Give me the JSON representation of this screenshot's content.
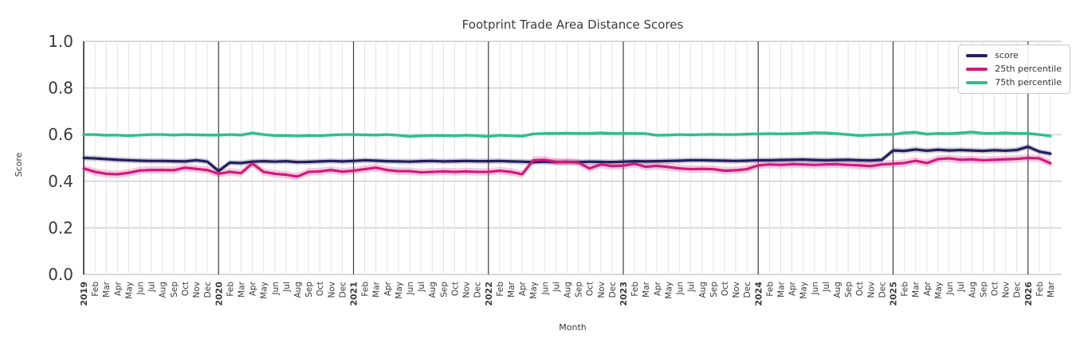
{
  "chart_data": {
    "type": "line",
    "title": "Footprint Trade Area Distance Scores",
    "xlabel": "Month",
    "ylabel": "Score",
    "ylim": [
      0.0,
      1.0
    ],
    "yticks": [
      0.0,
      0.2,
      0.4,
      0.6,
      0.8,
      1.0
    ],
    "grid": "on",
    "legend_position": "upper right",
    "x_labels": [
      "2019",
      "Feb",
      "Mar",
      "Apr",
      "May",
      "Jun",
      "Jul",
      "Aug",
      "Sep",
      "Oct",
      "Nov",
      "Dec",
      "2020",
      "Feb",
      "Mar",
      "Apr",
      "May",
      "Jun",
      "Jul",
      "Aug",
      "Sep",
      "Oct",
      "Nov",
      "Dec",
      "2021",
      "Feb",
      "Mar",
      "Apr",
      "May",
      "Jun",
      "Jul",
      "Aug",
      "Sep",
      "Oct",
      "Nov",
      "Dec",
      "2022",
      "Feb",
      "Mar",
      "Apr",
      "May",
      "Jun",
      "Jul",
      "Aug",
      "Sep",
      "Oct",
      "Nov",
      "Dec",
      "2023",
      "Feb",
      "Mar",
      "Apr",
      "May",
      "Jun",
      "Jul",
      "Aug",
      "Sep",
      "Oct",
      "Nov",
      "Dec",
      "2024",
      "Feb",
      "Mar",
      "Apr",
      "May",
      "Jun",
      "Jul",
      "Aug",
      "Sep",
      "Oct",
      "Nov",
      "Dec",
      "2025",
      "Feb",
      "Mar",
      "Apr",
      "May",
      "Jun",
      "Jul",
      "Aug",
      "Sep",
      "Oct",
      "Nov",
      "Dec",
      "2026",
      "Feb",
      "Mar"
    ],
    "series": [
      {
        "name": "score",
        "color": "#221f5b",
        "band_halfwidth": 0.012,
        "values": [
          0.5,
          0.498,
          0.495,
          0.492,
          0.49,
          0.488,
          0.487,
          0.487,
          0.486,
          0.485,
          0.49,
          0.484,
          0.444,
          0.48,
          0.478,
          0.484,
          0.486,
          0.484,
          0.486,
          0.482,
          0.483,
          0.485,
          0.487,
          0.485,
          0.487,
          0.49,
          0.488,
          0.486,
          0.485,
          0.484,
          0.486,
          0.487,
          0.485,
          0.486,
          0.487,
          0.486,
          0.486,
          0.487,
          0.485,
          0.484,
          0.482,
          0.484,
          0.482,
          0.483,
          0.482,
          0.484,
          0.483,
          0.482,
          0.484,
          0.486,
          0.485,
          0.486,
          0.487,
          0.488,
          0.49,
          0.49,
          0.489,
          0.488,
          0.487,
          0.488,
          0.49,
          0.49,
          0.491,
          0.492,
          0.493,
          0.491,
          0.49,
          0.491,
          0.492,
          0.49,
          0.489,
          0.492,
          0.532,
          0.53,
          0.536,
          0.531,
          0.535,
          0.532,
          0.534,
          0.532,
          0.53,
          0.533,
          0.531,
          0.534,
          0.548,
          0.527,
          0.518
        ]
      },
      {
        "name": "25th percentile",
        "color": "#d2197d",
        "band_halfwidth": 0.016,
        "values": [
          0.455,
          0.44,
          0.432,
          0.43,
          0.436,
          0.446,
          0.448,
          0.448,
          0.447,
          0.458,
          0.453,
          0.448,
          0.432,
          0.44,
          0.435,
          0.476,
          0.44,
          0.432,
          0.428,
          0.42,
          0.44,
          0.442,
          0.448,
          0.441,
          0.445,
          0.452,
          0.458,
          0.448,
          0.443,
          0.443,
          0.438,
          0.44,
          0.442,
          0.44,
          0.442,
          0.44,
          0.44,
          0.445,
          0.44,
          0.43,
          0.49,
          0.492,
          0.483,
          0.483,
          0.48,
          0.455,
          0.472,
          0.465,
          0.467,
          0.475,
          0.462,
          0.466,
          0.461,
          0.455,
          0.452,
          0.453,
          0.452,
          0.445,
          0.447,
          0.452,
          0.468,
          0.472,
          0.47,
          0.473,
          0.472,
          0.47,
          0.472,
          0.473,
          0.47,
          0.468,
          0.465,
          0.472,
          0.475,
          0.478,
          0.488,
          0.478,
          0.495,
          0.498,
          0.492,
          0.494,
          0.49,
          0.492,
          0.494,
          0.496,
          0.5,
          0.498,
          0.477
        ]
      },
      {
        "name": "75th percentile",
        "color": "#2cbe8e",
        "band_halfwidth": 0.008,
        "values": [
          0.6,
          0.6,
          0.597,
          0.598,
          0.595,
          0.598,
          0.6,
          0.6,
          0.598,
          0.6,
          0.599,
          0.598,
          0.598,
          0.6,
          0.598,
          0.607,
          0.6,
          0.596,
          0.596,
          0.594,
          0.596,
          0.595,
          0.598,
          0.6,
          0.6,
          0.599,
          0.598,
          0.6,
          0.597,
          0.592,
          0.595,
          0.596,
          0.596,
          0.595,
          0.597,
          0.595,
          0.592,
          0.597,
          0.595,
          0.593,
          0.603,
          0.605,
          0.605,
          0.606,
          0.605,
          0.605,
          0.607,
          0.605,
          0.605,
          0.605,
          0.604,
          0.597,
          0.598,
          0.6,
          0.599,
          0.6,
          0.601,
          0.6,
          0.6,
          0.602,
          0.603,
          0.604,
          0.603,
          0.604,
          0.605,
          0.608,
          0.607,
          0.604,
          0.6,
          0.596,
          0.598,
          0.6,
          0.601,
          0.608,
          0.61,
          0.602,
          0.605,
          0.604,
          0.607,
          0.611,
          0.606,
          0.605,
          0.607,
          0.605,
          0.605,
          0.6,
          0.594
        ]
      }
    ],
    "colors": {
      "grid_horizontal": "#cbcbcb",
      "grid_month": "#e3e3e3",
      "grid_year": "#3c3c3c",
      "spine": "#2f2f2f",
      "tick_text": "#3a3a3a"
    }
  }
}
